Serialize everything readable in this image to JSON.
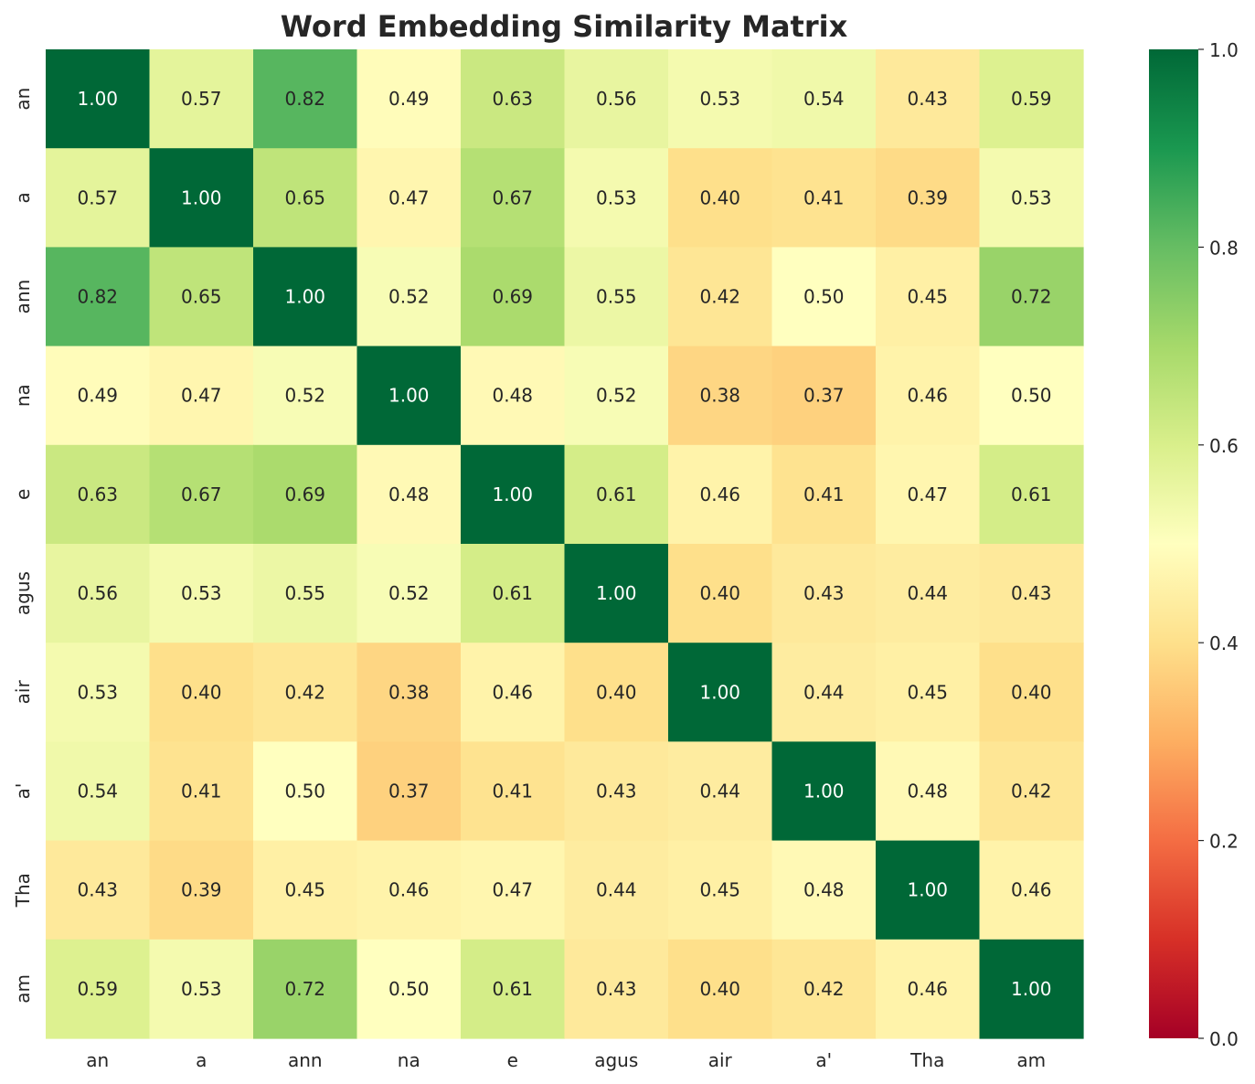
{
  "chart_data": {
    "type": "heatmap",
    "title": "Word Embedding Similarity Matrix",
    "xlabel": "",
    "ylabel": "",
    "x_labels": [
      "an",
      "a",
      "ann",
      "na",
      "e",
      "agus",
      "air",
      "a'",
      "Tha",
      "am"
    ],
    "y_labels": [
      "an",
      "a",
      "ann",
      "na",
      "e",
      "agus",
      "air",
      "a'",
      "Tha",
      "am"
    ],
    "values": [
      [
        1.0,
        0.57,
        0.82,
        0.49,
        0.63,
        0.56,
        0.53,
        0.54,
        0.43,
        0.59
      ],
      [
        0.57,
        1.0,
        0.65,
        0.47,
        0.67,
        0.53,
        0.4,
        0.41,
        0.39,
        0.53
      ],
      [
        0.82,
        0.65,
        1.0,
        0.52,
        0.69,
        0.55,
        0.42,
        0.5,
        0.45,
        0.72
      ],
      [
        0.49,
        0.47,
        0.52,
        1.0,
        0.48,
        0.52,
        0.38,
        0.37,
        0.46,
        0.5
      ],
      [
        0.63,
        0.67,
        0.69,
        0.48,
        1.0,
        0.61,
        0.46,
        0.41,
        0.47,
        0.61
      ],
      [
        0.56,
        0.53,
        0.55,
        0.52,
        0.61,
        1.0,
        0.4,
        0.43,
        0.44,
        0.43
      ],
      [
        0.53,
        0.4,
        0.42,
        0.38,
        0.46,
        0.4,
        1.0,
        0.44,
        0.45,
        0.4
      ],
      [
        0.54,
        0.41,
        0.5,
        0.37,
        0.41,
        0.43,
        0.44,
        1.0,
        0.48,
        0.42
      ],
      [
        0.43,
        0.39,
        0.45,
        0.46,
        0.47,
        0.44,
        0.45,
        0.48,
        1.0,
        0.46
      ],
      [
        0.59,
        0.53,
        0.72,
        0.5,
        0.61,
        0.43,
        0.4,
        0.42,
        0.46,
        1.0
      ]
    ],
    "value_format": "0.00",
    "colormap": "RdYlGn",
    "vmin": 0.0,
    "vmax": 1.0,
    "colorbar": {
      "ticks": [
        0.0,
        0.2,
        0.4,
        0.6,
        0.8,
        1.0
      ],
      "tick_labels": [
        "0.0",
        "0.2",
        "0.4",
        "0.6",
        "0.8",
        "1.0"
      ]
    },
    "grid": false,
    "legend": "colorbar-right"
  }
}
